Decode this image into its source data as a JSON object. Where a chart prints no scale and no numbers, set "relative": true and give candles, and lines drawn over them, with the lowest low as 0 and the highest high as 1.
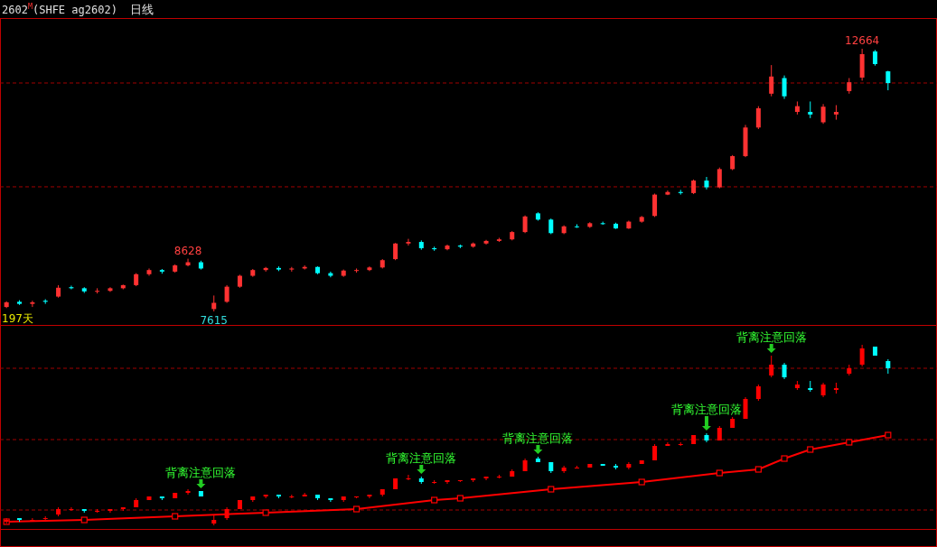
{
  "chart_data": [
    {
      "type": "candlestick",
      "title": "2602$^{M}$(SHFE ag2602)",
      "subtitle": "日线",
      "categories": [
        null,
        null,
        null,
        null,
        null,
        null,
        null,
        null,
        null,
        null,
        null,
        null,
        null,
        null,
        null,
        null,
        null,
        null,
        null,
        null,
        null,
        null,
        null,
        null,
        null,
        null,
        null,
        null,
        null,
        null,
        null,
        null,
        null,
        null,
        null,
        null,
        null,
        null,
        null,
        null,
        null,
        null,
        null,
        null,
        null,
        null,
        null,
        null,
        null,
        null,
        null,
        null,
        null,
        null,
        null,
        null,
        null,
        null,
        null,
        null,
        null,
        null,
        null,
        null,
        null,
        null,
        null,
        null,
        null
      ],
      "ohlc": [
        [
          7700,
          7810,
          7680,
          7790
        ],
        [
          7800,
          7830,
          7740,
          7760
        ],
        [
          7760,
          7820,
          7700,
          7790
        ],
        [
          7820,
          7850,
          7760,
          7800
        ],
        [
          7900,
          8120,
          7880,
          8070
        ],
        [
          8080,
          8110,
          8040,
          8060
        ],
        [
          8060,
          8080,
          7970,
          8000
        ],
        [
          8000,
          8060,
          7960,
          8010
        ],
        [
          8010,
          8080,
          7990,
          8060
        ],
        [
          8060,
          8130,
          8040,
          8120
        ],
        [
          8120,
          8350,
          8100,
          8330
        ],
        [
          8330,
          8440,
          8300,
          8410
        ],
        [
          8410,
          8430,
          8340,
          8380
        ],
        [
          8380,
          8520,
          8360,
          8500
        ],
        [
          8500,
          8628,
          8480,
          8560
        ],
        [
          8560,
          8590,
          8420,
          8440
        ],
        [
          7660,
          7920,
          7615,
          7780
        ],
        [
          7800,
          8120,
          7780,
          8090
        ],
        [
          8090,
          8320,
          8070,
          8300
        ],
        [
          8300,
          8430,
          8280,
          8410
        ],
        [
          8410,
          8470,
          8380,
          8450
        ],
        [
          8450,
          8480,
          8390,
          8420
        ],
        [
          8420,
          8470,
          8380,
          8440
        ],
        [
          8440,
          8500,
          8420,
          8470
        ],
        [
          8470,
          8480,
          8330,
          8350
        ],
        [
          8350,
          8380,
          8270,
          8300
        ],
        [
          8300,
          8420,
          8280,
          8400
        ],
        [
          8400,
          8440,
          8360,
          8410
        ],
        [
          8410,
          8480,
          8390,
          8460
        ],
        [
          8460,
          8620,
          8440,
          8600
        ],
        [
          8620,
          8930,
          8600,
          8920
        ],
        [
          8920,
          9010,
          8880,
          8950
        ],
        [
          8950,
          8980,
          8800,
          8830
        ],
        [
          8830,
          8860,
          8780,
          8810
        ],
        [
          8810,
          8900,
          8790,
          8880
        ],
        [
          8880,
          8900,
          8830,
          8860
        ],
        [
          8860,
          8940,
          8840,
          8920
        ],
        [
          8920,
          8990,
          8900,
          8970
        ],
        [
          8970,
          9030,
          8950,
          9000
        ],
        [
          9000,
          9160,
          8980,
          9140
        ],
        [
          9140,
          9460,
          9120,
          9440
        ],
        [
          9500,
          9520,
          9360,
          9380
        ],
        [
          9380,
          9400,
          9100,
          9120
        ],
        [
          9120,
          9270,
          9100,
          9250
        ],
        [
          9250,
          9290,
          9220,
          9240
        ],
        [
          9240,
          9330,
          9220,
          9310
        ],
        [
          9310,
          9340,
          9280,
          9300
        ],
        [
          9300,
          9320,
          9200,
          9210
        ],
        [
          9210,
          9360,
          9200,
          9340
        ],
        [
          9340,
          9450,
          9320,
          9430
        ],
        [
          9450,
          9880,
          9430,
          9860
        ],
        [
          9860,
          9940,
          9850,
          9910
        ],
        [
          9910,
          9950,
          9860,
          9890
        ],
        [
          9890,
          10150,
          9870,
          10130
        ],
        [
          10130,
          10200,
          9960,
          10000
        ],
        [
          10000,
          10380,
          9980,
          10350
        ],
        [
          10350,
          10620,
          10330,
          10600
        ],
        [
          10600,
          11200,
          10580,
          11150
        ],
        [
          11150,
          11560,
          11120,
          11520
        ],
        [
          11800,
          12350,
          11750,
          12130
        ],
        [
          12100,
          12150,
          11700,
          11750
        ],
        [
          11450,
          11650,
          11400,
          11560
        ],
        [
          11450,
          11650,
          11330,
          11400
        ],
        [
          11250,
          11600,
          11220,
          11550
        ],
        [
          11400,
          11580,
          11300,
          11450
        ],
        [
          11850,
          12100,
          11800,
          12020
        ],
        [
          12110,
          12664,
          12050,
          12560
        ],
        [
          12612,
          12640,
          12340,
          12369
        ],
        [
          12230,
          12240,
          11866,
          12004
        ]
      ],
      "colors": [
        "#ff3232",
        "#00ffff",
        "#ff3232",
        "#00ffff",
        "#ff3232",
        "#00ffff",
        "#00ffff",
        "#ff3232",
        "#ff3232",
        "#ff3232",
        "#ff3232",
        "#ff3232",
        "#00ffff",
        "#ff3232",
        "#ff3232",
        "#00ffff",
        "#ff3232",
        "#ff3232",
        "#ff3232",
        "#ff3232",
        "#ff3232",
        "#00ffff",
        "#ff3232",
        "#ff3232",
        "#00ffff",
        "#00ffff",
        "#ff3232",
        "#ff3232",
        "#ff3232",
        "#ff3232",
        "#ff3232",
        "#ff3232",
        "#00ffff",
        "#00ffff",
        "#ff3232",
        "#00ffff",
        "#ff3232",
        "#ff3232",
        "#ff3232",
        "#ff3232",
        "#ff3232",
        "#00ffff",
        "#00ffff",
        "#ff3232",
        "#00ffff",
        "#ff3232",
        "#00ffff",
        "#00ffff",
        "#ff3232",
        "#ff3232",
        "#ff3232",
        "#ff3232",
        "#00ffff",
        "#ff3232",
        "#00ffff",
        "#ff3232",
        "#ff3232",
        "#ff3232",
        "#ff3232",
        "#ff3232",
        "#00ffff",
        "#ff3232",
        "#00ffff",
        "#ff3232",
        "#ff3232",
        "#ff3232",
        "#ff3232",
        "#00ffff",
        "#00ffff"
      ],
      "ref_lines": [
        {
          "axis": "y",
          "value": 12005,
          "color": "#a00000",
          "line_style": "dashed"
        },
        {
          "axis": "y",
          "value": 10010,
          "color": "#a00000",
          "line_style": "dashed"
        }
      ],
      "annotations": [
        {
          "text": "12664",
          "y": 12664
        },
        {
          "text": "8628",
          "y": 8628
        },
        {
          "text": "7615",
          "y": 7615
        },
        "197天"
      ]
    },
    {
      "type": "candlestick",
      "relative": true,
      "categories": [
        null,
        null,
        null,
        null,
        null,
        null,
        null,
        null,
        null,
        null,
        null,
        null,
        null,
        null,
        null,
        null,
        null,
        null,
        null,
        null,
        null,
        null,
        null,
        null,
        null,
        null,
        null,
        null,
        null,
        null,
        null,
        null,
        null,
        null,
        null,
        null,
        null,
        null,
        null,
        null,
        null,
        null,
        null,
        null,
        null,
        null,
        null,
        null,
        null,
        null,
        null,
        null,
        null,
        null,
        null,
        null,
        null,
        null,
        null,
        null,
        null,
        null,
        null,
        null,
        null,
        null,
        null,
        null,
        null
      ],
      "series": [
        {
          "type": "candlestick",
          "ohlc": [
            [
              0.02,
              0.04,
              0.01,
              0.03
            ],
            [
              0.04,
              0.04,
              0.02,
              0.03
            ],
            [
              0.03,
              0.04,
              0.02,
              0.03
            ],
            [
              0.04,
              0.05,
              0.03,
              0.04
            ],
            [
              0.06,
              0.1,
              0.05,
              0.09
            ],
            [
              0.09,
              0.1,
              0.08,
              0.09
            ],
            [
              0.09,
              0.09,
              0.07,
              0.08
            ],
            [
              0.08,
              0.09,
              0.07,
              0.08
            ],
            [
              0.08,
              0.09,
              0.07,
              0.09
            ],
            [
              0.09,
              0.1,
              0.08,
              0.1
            ],
            [
              0.1,
              0.15,
              0.1,
              0.14
            ],
            [
              0.14,
              0.16,
              0.14,
              0.16
            ],
            [
              0.16,
              0.16,
              0.14,
              0.15
            ],
            [
              0.15,
              0.18,
              0.15,
              0.18
            ],
            [
              0.18,
              0.2,
              0.17,
              0.19
            ],
            [
              0.19,
              0.19,
              0.16,
              0.16
            ],
            [
              0.01,
              0.06,
              0,
              0.03
            ],
            [
              0.04,
              0.1,
              0.03,
              0.09
            ],
            [
              0.09,
              0.14,
              0.09,
              0.14
            ],
            [
              0.14,
              0.16,
              0.13,
              0.16
            ],
            [
              0.16,
              0.17,
              0.15,
              0.17
            ],
            [
              0.17,
              0.17,
              0.15,
              0.16
            ],
            [
              0.16,
              0.17,
              0.15,
              0.16
            ],
            [
              0.16,
              0.18,
              0.16,
              0.17
            ],
            [
              0.17,
              0.17,
              0.14,
              0.15
            ],
            [
              0.15,
              0.15,
              0.13,
              0.14
            ],
            [
              0.14,
              0.16,
              0.13,
              0.16
            ],
            [
              0.16,
              0.16,
              0.15,
              0.16
            ],
            [
              0.16,
              0.17,
              0.15,
              0.17
            ],
            [
              0.17,
              0.2,
              0.16,
              0.2
            ],
            [
              0.2,
              0.26,
              0.2,
              0.26
            ],
            [
              0.26,
              0.28,
              0.25,
              0.26
            ],
            [
              0.26,
              0.27,
              0.23,
              0.24
            ],
            [
              0.24,
              0.25,
              0.23,
              0.24
            ],
            [
              0.24,
              0.25,
              0.23,
              0.25
            ],
            [
              0.25,
              0.25,
              0.24,
              0.25
            ],
            [
              0.25,
              0.26,
              0.24,
              0.26
            ],
            [
              0.26,
              0.27,
              0.25,
              0.27
            ],
            [
              0.27,
              0.28,
              0.26,
              0.27
            ],
            [
              0.27,
              0.31,
              0.27,
              0.3
            ],
            [
              0.3,
              0.37,
              0.3,
              0.36
            ],
            [
              0.37,
              0.38,
              0.35,
              0.35
            ],
            [
              0.35,
              0.35,
              0.29,
              0.3
            ],
            [
              0.3,
              0.33,
              0.29,
              0.32
            ],
            [
              0.32,
              0.33,
              0.32,
              0.32
            ],
            [
              0.32,
              0.34,
              0.32,
              0.34
            ],
            [
              0.34,
              0.34,
              0.33,
              0.33
            ],
            [
              0.33,
              0.34,
              0.31,
              0.32
            ],
            [
              0.32,
              0.35,
              0.31,
              0.34
            ],
            [
              0.34,
              0.36,
              0.34,
              0.36
            ],
            [
              0.36,
              0.45,
              0.36,
              0.44
            ],
            [
              0.44,
              0.46,
              0.44,
              0.45
            ],
            [
              0.45,
              0.46,
              0.44,
              0.45
            ],
            [
              0.45,
              0.5,
              0.45,
              0.5
            ],
            [
              0.5,
              0.51,
              0.46,
              0.47
            ],
            [
              0.47,
              0.55,
              0.47,
              0.54
            ],
            [
              0.54,
              0.6,
              0.54,
              0.59
            ],
            [
              0.59,
              0.71,
              0.59,
              0.7
            ],
            [
              0.7,
              0.78,
              0.69,
              0.77
            ],
            [
              0.83,
              0.94,
              0.82,
              0.89
            ],
            [
              0.89,
              0.9,
              0.81,
              0.82
            ],
            [
              0.76,
              0.8,
              0.75,
              0.78
            ],
            [
              0.76,
              0.8,
              0.74,
              0.75
            ],
            [
              0.72,
              0.79,
              0.71,
              0.78
            ],
            [
              0.75,
              0.79,
              0.73,
              0.76
            ],
            [
              0.84,
              0.89,
              0.83,
              0.87
            ],
            [
              0.89,
              1,
              0.88,
              0.98
            ],
            [
              0.99,
              0.99,
              0.94,
              0.94
            ],
            [
              0.91,
              0.92,
              0.84,
              0.87
            ]
          ],
          "colors": [
            "#ff0000",
            "#00ffff",
            "#ff0000",
            "#ff0000",
            "#ff0000",
            "#ff0000",
            "#00ffff",
            "#ff0000",
            "#ff0000",
            "#ff0000",
            "#ff0000",
            "#ff0000",
            "#00ffff",
            "#ff0000",
            "#ff0000",
            "#00ffff",
            "#ff0000",
            "#ff0000",
            "#ff0000",
            "#ff0000",
            "#ff0000",
            "#00ffff",
            "#ff0000",
            "#ff0000",
            "#00ffff",
            "#00ffff",
            "#ff0000",
            "#ff0000",
            "#ff0000",
            "#ff0000",
            "#ff0000",
            "#ff0000",
            "#00ffff",
            "#ff0000",
            "#ff0000",
            "#ff0000",
            "#ff0000",
            "#ff0000",
            "#ff0000",
            "#ff0000",
            "#ff0000",
            "#00ffff",
            "#00ffff",
            "#ff0000",
            "#ff0000",
            "#ff0000",
            "#00ffff",
            "#00ffff",
            "#ff0000",
            "#ff0000",
            "#ff0000",
            "#ff0000",
            "#ff0000",
            "#ff0000",
            "#00ffff",
            "#ff0000",
            "#ff0000",
            "#ff0000",
            "#ff0000",
            "#ff0000",
            "#00ffff",
            "#ff0000",
            "#00ffff",
            "#ff0000",
            "#ff0000",
            "#ff0000",
            "#ff0000",
            "#00ffff",
            "#00ffff"
          ]
        },
        {
          "type": "line",
          "marker": "square",
          "color": "#ff0000",
          "values": [
            0.02,
            null,
            null,
            null,
            null,
            null,
            0.03,
            null,
            null,
            null,
            null,
            null,
            null,
            0.05,
            null,
            null,
            null,
            null,
            null,
            null,
            0.07,
            null,
            null,
            null,
            null,
            null,
            null,
            0.09,
            null,
            null,
            null,
            null,
            null,
            0.14,
            null,
            0.15,
            null,
            null,
            null,
            null,
            null,
            null,
            0.2,
            null,
            null,
            null,
            null,
            null,
            null,
            0.24,
            null,
            null,
            null,
            null,
            null,
            0.29,
            null,
            null,
            0.31,
            null,
            0.37,
            null,
            0.42,
            null,
            null,
            0.46,
            null,
            null,
            0.5
          ]
        }
      ],
      "ref_lines": [
        {
          "axis": "y",
          "value": 0.87,
          "color": "#a00000",
          "line_style": "dashed"
        },
        {
          "axis": "y",
          "value": 0.475,
          "color": "#a00000",
          "line_style": "dashed"
        },
        {
          "axis": "y",
          "value": 0.085,
          "color": "#a00000",
          "line_style": "dashed"
        }
      ],
      "annotations": [
        {
          "text": "背离注意回落",
          "y": 0.19
        },
        {
          "text": "背离注意回落",
          "y": 0.27
        },
        {
          "text": "背离注意回落",
          "y": 0.38
        },
        {
          "text": "背离注意回落",
          "y": 0.51
        },
        {
          "text": "背离注意回落",
          "y": 0.94
        }
      ]
    }
  ]
}
